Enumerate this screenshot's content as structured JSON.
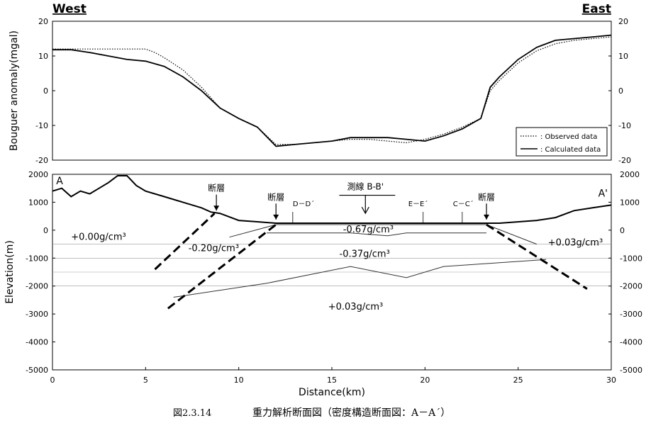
{
  "header": {
    "west_label": "West",
    "east_label": "East"
  },
  "caption": {
    "number": "図2.3.14",
    "title": "重力解析断面図（密度構造断面図：A－A´）"
  },
  "chart_data": [
    {
      "type": "line",
      "ylabel": "Bouguer anomaly(mgal)",
      "xlim": [
        0,
        30
      ],
      "ylim": [
        -20,
        20
      ],
      "y_ticks": [
        "-20",
        "-10",
        "0",
        "10",
        "20"
      ],
      "legend": {
        "placement": "bottom-right",
        "entries": [
          ": Observed data",
          ": Calculated data"
        ]
      },
      "series": [
        {
          "name": ": Observed data",
          "style": "dotted",
          "x": [
            0,
            1,
            2,
            3,
            4,
            5,
            5.5,
            6,
            7,
            8,
            9,
            10,
            11,
            12,
            13,
            14,
            15,
            16,
            17,
            18,
            19,
            20,
            21,
            22,
            23,
            23.5,
            24,
            25,
            26,
            27,
            28,
            29,
            30
          ],
          "y": [
            12,
            12,
            12,
            12,
            12,
            12,
            11,
            9.5,
            6,
            1,
            -5,
            -8,
            -10.5,
            -15.5,
            -15.5,
            -15,
            -14.5,
            -14,
            -14,
            -14.5,
            -15,
            -14,
            -12.5,
            -10.5,
            -8,
            0,
            3,
            8,
            11.5,
            13.5,
            14.5,
            15,
            15.5
          ]
        },
        {
          "name": ": Calculated data",
          "style": "solid",
          "x": [
            0,
            1,
            2,
            3,
            4,
            5,
            6,
            7,
            8,
            9,
            10,
            11,
            12,
            13,
            14,
            15,
            16,
            17,
            18,
            19,
            20,
            21,
            22,
            23,
            23.5,
            24,
            25,
            26,
            27,
            28,
            29,
            30
          ],
          "y": [
            11.8,
            11.8,
            11,
            10,
            9,
            8.5,
            7,
            4,
            0,
            -5,
            -8,
            -10.5,
            -16,
            -15.5,
            -15,
            -14.5,
            -13.5,
            -13.5,
            -13.5,
            -14,
            -14.5,
            -13,
            -11,
            -8,
            1,
            4,
            9,
            12.5,
            14.5,
            15,
            15.5,
            16
          ]
        }
      ]
    },
    {
      "type": "line",
      "xlabel": "Distance(km)",
      "ylabel": "Elevation(m)",
      "xlim": [
        0,
        30
      ],
      "ylim": [
        -5000,
        2000
      ],
      "x_ticks": [
        "0",
        "5",
        "10",
        "15",
        "20",
        "25",
        "30"
      ],
      "y_ticks": [
        "-5000",
        "-4000",
        "-3000",
        "-2000",
        "-1000",
        "0",
        "1000",
        "2000"
      ],
      "topography": {
        "x": [
          0,
          0.5,
          1,
          1.5,
          2,
          2.5,
          3,
          3.5,
          4,
          4.5,
          5,
          6,
          7,
          8,
          8.5,
          9,
          10,
          11,
          12,
          14,
          16,
          18,
          20,
          22,
          23,
          23.5,
          24,
          26,
          27,
          28,
          29,
          30
        ],
        "y": [
          1400,
          1500,
          1200,
          1400,
          1300,
          1500,
          1700,
          1950,
          1950,
          1600,
          1400,
          1200,
          1000,
          800,
          650,
          600,
          350,
          300,
          250,
          250,
          250,
          250,
          250,
          250,
          250,
          250,
          250,
          350,
          450,
          700,
          800,
          900
        ]
      },
      "boundaries": [
        {
          "x": [
            9.5,
            12,
            23.3,
            26
          ],
          "y": [
            -250,
            200,
            200,
            -500
          ]
        },
        {
          "x": [
            11.5,
            12.5,
            16,
            18,
            19,
            23.3
          ],
          "y": [
            -100,
            -100,
            -100,
            -200,
            -100,
            -100
          ]
        },
        {
          "x": [
            6.5,
            11.5,
            16,
            19,
            21,
            26.5
          ],
          "y": [
            -2400,
            -1900,
            -1300,
            -1700,
            -1300,
            -1050
          ]
        }
      ],
      "faults": [
        {
          "x": [
            5.5,
            8.7
          ],
          "y": [
            -1400,
            600
          ]
        },
        {
          "x": [
            6.2,
            12
          ],
          "y": [
            -2800,
            200
          ]
        },
        {
          "x": [
            23.3,
            28.7
          ],
          "y": [
            200,
            -2100
          ]
        }
      ],
      "ref_lines": [
        -500,
        -1000,
        -1500,
        -2000
      ],
      "section_labels": [
        {
          "text": "A",
          "x": 0.2,
          "y": 1650
        },
        {
          "text": "A'",
          "x": 29.3,
          "y": 1200
        }
      ],
      "arrows": [
        {
          "text": "断層",
          "x": 8.8,
          "y_tip": 700,
          "y_text": 1400
        },
        {
          "text": "断層",
          "x": 12,
          "y_tip": 380,
          "y_text": 1080
        },
        {
          "text": "断層",
          "x": 23.3,
          "y_tip": 380,
          "y_text": 1080
        }
      ],
      "survey_line": {
        "text": "測線 B-B'",
        "x": 16.8,
        "x_from": 15.4,
        "x_to": 18.4,
        "y_bar": 1250,
        "y_tip": 600,
        "y_text": 1450
      },
      "cross_lines": [
        {
          "text": "D－D´",
          "x": 12.9,
          "tick_x": 12.9
        },
        {
          "text": "E－E´",
          "x": 19.1,
          "tick_x": 19.9
        },
        {
          "text": "C－C´",
          "x": 21.5,
          "tick_x": 22
        }
      ],
      "densities": [
        {
          "text": "+0.00g/cm³",
          "x": 1,
          "y": -350
        },
        {
          "text": "-0.20g/cm³",
          "x": 7.3,
          "y": -750
        },
        {
          "text": "-0.67g/cm³",
          "x": 15.6,
          "y": -80
        },
        {
          "text": "-0.37g/cm³",
          "x": 15.4,
          "y": -950
        },
        {
          "text": "+0.03g/cm³",
          "x": 26.6,
          "y": -550
        },
        {
          "text": "+0.03g/cm³",
          "x": 14.8,
          "y": -2850
        }
      ]
    }
  ]
}
